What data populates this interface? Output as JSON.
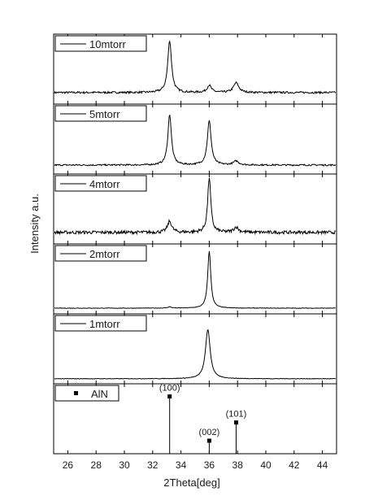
{
  "chart_data": {
    "type": "line",
    "xlabel": "2Theta[deg]",
    "ylabel": "Intensity a.u.",
    "xlim": [
      25,
      45
    ],
    "x_ticks": [
      "26",
      "28",
      "30",
      "32",
      "34",
      "36",
      "38",
      "40",
      "42",
      "44"
    ],
    "x_tick_values": [
      26,
      28,
      30,
      32,
      34,
      36,
      38,
      40,
      42,
      44
    ],
    "colors": {
      "line": "#000000",
      "frame": "#000000"
    },
    "panels": [
      {
        "name": "10mtorr",
        "baseline": 0.14,
        "noise": 0.015,
        "peaks": [
          {
            "x": 33.2,
            "h": 0.8,
            "w": 0.16
          },
          {
            "x": 36.0,
            "h": 0.11,
            "w": 0.18
          },
          {
            "x": 37.9,
            "h": 0.15,
            "w": 0.22
          }
        ]
      },
      {
        "name": "5mtorr",
        "baseline": 0.1,
        "noise": 0.012,
        "peaks": [
          {
            "x": 33.2,
            "h": 0.78,
            "w": 0.15
          },
          {
            "x": 36.0,
            "h": 0.68,
            "w": 0.16
          },
          {
            "x": 37.9,
            "h": 0.06,
            "w": 0.22
          }
        ]
      },
      {
        "name": "4mtorr",
        "baseline": 0.14,
        "noise": 0.025,
        "peaks": [
          {
            "x": 33.2,
            "h": 0.17,
            "w": 0.18
          },
          {
            "x": 36.0,
            "h": 0.85,
            "w": 0.13
          },
          {
            "x": 37.9,
            "h": 0.08,
            "w": 0.2
          }
        ]
      },
      {
        "name": "2mtorr",
        "baseline": 0.05,
        "noise": 0.004,
        "peaks": [
          {
            "x": 33.2,
            "h": 0.02,
            "w": 0.15
          },
          {
            "x": 36.0,
            "h": 0.88,
            "w": 0.13
          }
        ]
      },
      {
        "name": "1mtorr",
        "baseline": 0.04,
        "noise": 0.004,
        "peaks": [
          {
            "x": 35.9,
            "h": 0.76,
            "w": 0.2
          }
        ]
      }
    ],
    "reference": {
      "name": "AlN",
      "lines": [
        {
          "label": "(100)",
          "x": 33.2,
          "h": 0.88
        },
        {
          "label": "(002)",
          "x": 36.0,
          "h": 0.2
        },
        {
          "label": "(101)",
          "x": 37.9,
          "h": 0.48
        }
      ]
    }
  }
}
